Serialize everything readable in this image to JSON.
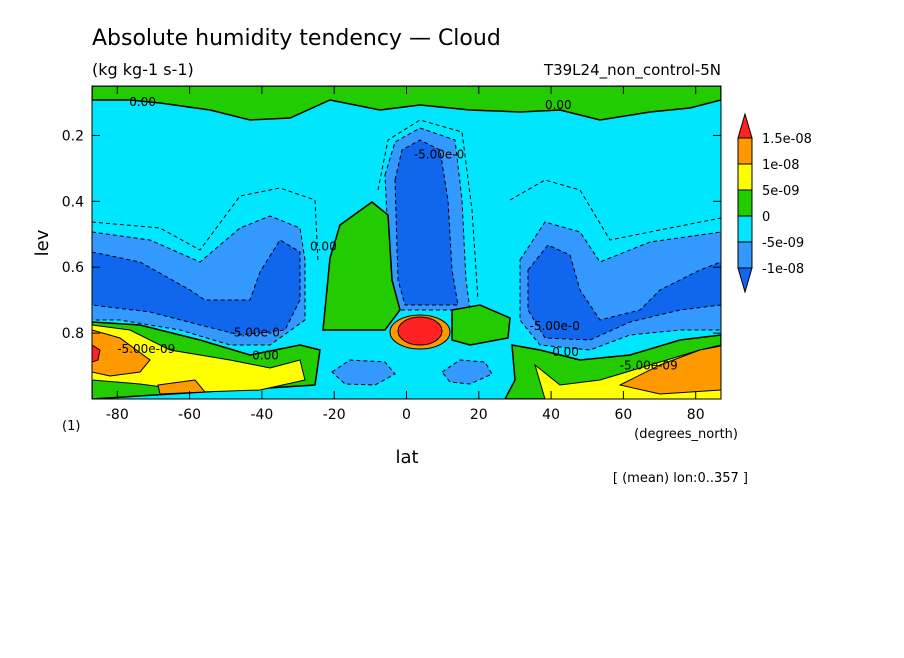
{
  "chart_data": {
    "type": "heatmap",
    "title": "Absolute humidity tendency — Cloud",
    "units": "(kg kg-1 s-1)",
    "run_label": "T39L24_non_control-5N",
    "xlabel": "lat",
    "xunits": "(degrees_north)",
    "ylabel": "lev",
    "yunits": "(1)",
    "footer": "[ (mean) lon:0..357 ]",
    "xlim": [
      -87,
      87
    ],
    "ylim": [
      1.0,
      0.05
    ],
    "x_ticks": [
      -80,
      -60,
      -40,
      -20,
      0,
      20,
      40,
      60,
      80
    ],
    "y_ticks": [
      0.2,
      0.4,
      0.6,
      0.8
    ],
    "colorbar": {
      "levels": [
        "1.5e-08",
        "1e-08",
        "5e-09",
        "0",
        "-5e-09",
        "-1e-08"
      ],
      "colors": [
        "#ff2222",
        "#ff9900",
        "#ffff00",
        "#22cc00",
        "#00e6ff",
        "#3399ff",
        "#1166ee"
      ]
    },
    "contour_labels": [
      {
        "text": "0.00",
        "lat": -73,
        "lev": 0.11
      },
      {
        "text": "0.00",
        "lat": 42,
        "lev": 0.12
      },
      {
        "text": "-5.00e-0",
        "lat": 9,
        "lev": 0.27
      },
      {
        "text": "0.00",
        "lat": -23,
        "lev": 0.55
      },
      {
        "text": "-5.00e-0",
        "lat": -42,
        "lev": 0.81
      },
      {
        "text": "-5.00e-0",
        "lat": 41,
        "lev": 0.79
      },
      {
        "text": "-5.00e-09",
        "lat": -72,
        "lev": 0.86
      },
      {
        "text": "0.00",
        "lat": -39,
        "lev": 0.88
      },
      {
        "text": "0.00",
        "lat": 44,
        "lev": 0.87
      },
      {
        "text": "-5.00e-09",
        "lat": 67,
        "lev": 0.91
      }
    ]
  }
}
